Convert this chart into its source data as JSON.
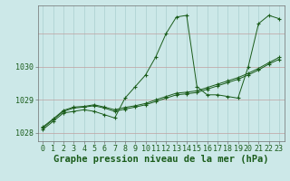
{
  "bg_color": "#cce8e8",
  "line_color": "#1a5c1a",
  "grid_color_v": "#aacfcf",
  "grid_color_h": "#c0a0a0",
  "hours": [
    0,
    1,
    2,
    3,
    4,
    5,
    6,
    7,
    8,
    9,
    10,
    11,
    12,
    13,
    14,
    15,
    16,
    17,
    18,
    19,
    20,
    21,
    22,
    23
  ],
  "series1": [
    1028.1,
    1028.35,
    1028.6,
    1028.65,
    1028.7,
    1028.65,
    1028.55,
    1028.45,
    1029.05,
    1029.4,
    1029.75,
    1030.3,
    1031.0,
    1031.5,
    1031.55,
    1029.4,
    1029.15,
    1029.15,
    1029.1,
    1029.05,
    1030.0,
    1031.3,
    1031.55,
    1031.45
  ],
  "series2": [
    1028.15,
    1028.4,
    1028.65,
    1028.75,
    1028.78,
    1028.82,
    1028.75,
    1028.65,
    1028.72,
    1028.78,
    1028.85,
    1028.95,
    1029.05,
    1029.15,
    1029.18,
    1029.22,
    1029.32,
    1029.42,
    1029.52,
    1029.62,
    1029.75,
    1029.9,
    1030.08,
    1030.22
  ],
  "series3": [
    1028.18,
    1028.42,
    1028.68,
    1028.78,
    1028.8,
    1028.85,
    1028.78,
    1028.7,
    1028.77,
    1028.82,
    1028.89,
    1029.0,
    1029.1,
    1029.2,
    1029.23,
    1029.27,
    1029.37,
    1029.47,
    1029.57,
    1029.67,
    1029.8,
    1029.95,
    1030.12,
    1030.28
  ],
  "ylim_min": 1027.75,
  "ylim_max": 1031.85,
  "yticks": [
    1028,
    1029,
    1030
  ],
  "xlabel": "Graphe pression niveau de la mer (hPa)",
  "axis_fontsize": 6,
  "xlabel_fontsize": 7.5
}
